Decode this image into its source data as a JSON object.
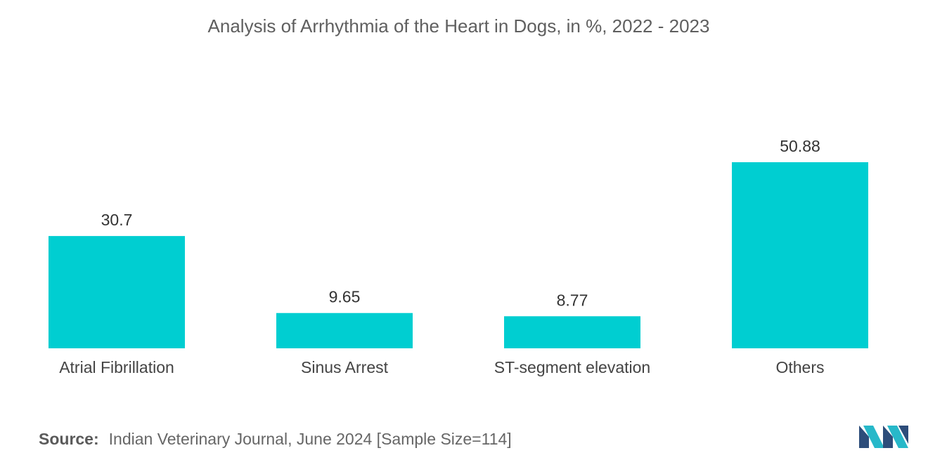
{
  "chart_data": {
    "type": "bar",
    "title": "Analysis of Arrhythmia of the Heart in Dogs, in %, 2022 - 2023",
    "categories": [
      "Atrial Fibrillation",
      "Sinus Arrest",
      "ST-segment elevation",
      "Others"
    ],
    "values": [
      30.7,
      9.65,
      8.77,
      50.88
    ],
    "value_labels": [
      "30.7",
      "9.65",
      "8.77",
      "50.88"
    ],
    "xlabel": "",
    "ylabel": "",
    "ylim": [
      0,
      50.88
    ],
    "grid": false,
    "legend": "none",
    "bar_color": "#00ced1"
  },
  "source": {
    "label": "Source:",
    "text": "Indian Veterinary Journal, June 2024 [Sample Size=114]"
  },
  "colors": {
    "bar": "#00ced1",
    "logo_dark": "#2d4d7a",
    "logo_light": "#27b8c9"
  }
}
